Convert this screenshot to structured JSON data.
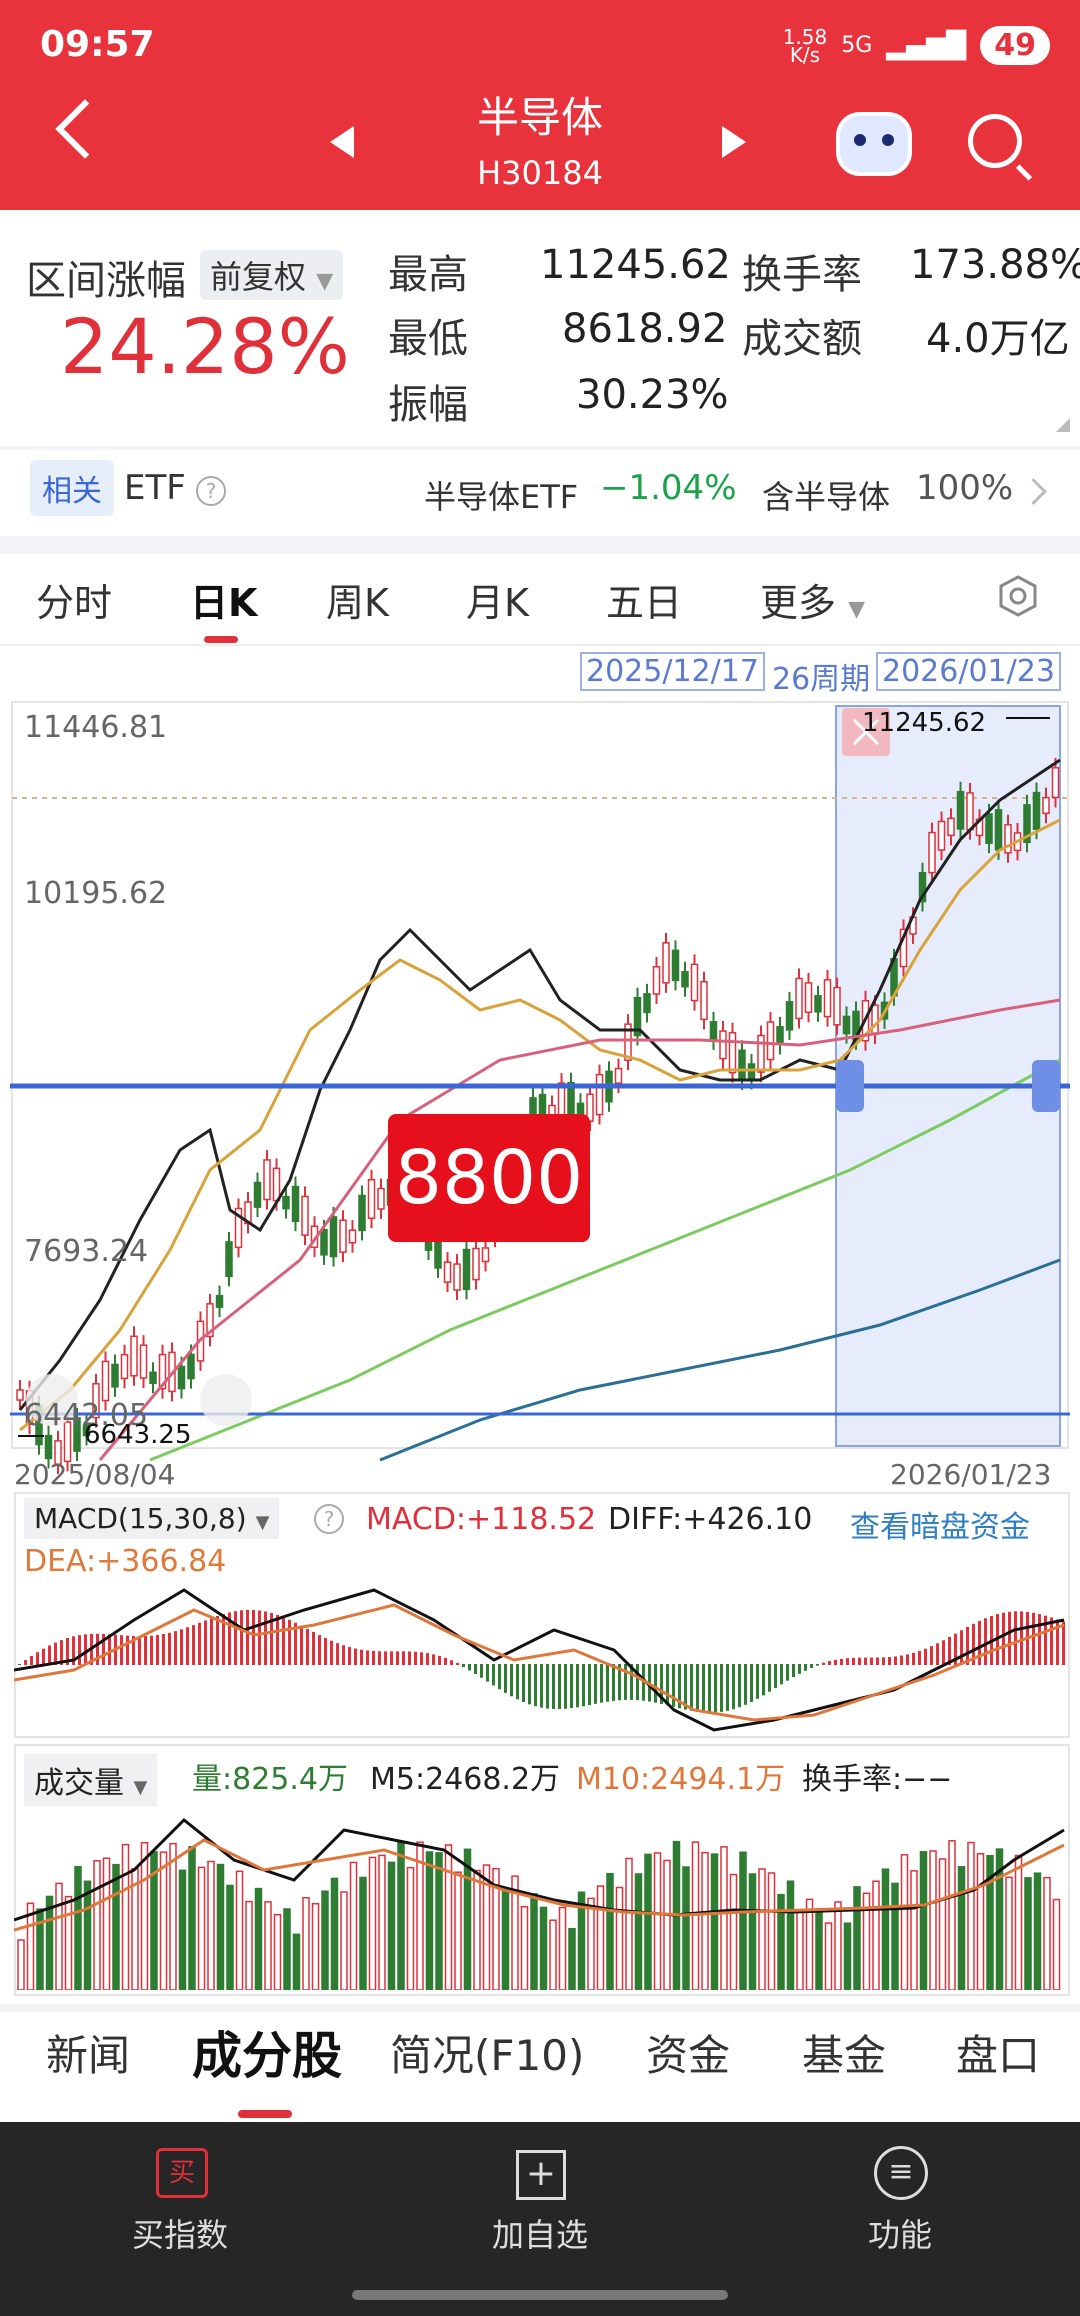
{
  "status": {
    "time": "09:57",
    "net_speed": "1.58\nK/s",
    "network": "5G",
    "battery": "49"
  },
  "header": {
    "title": "半导体",
    "code": "H30184"
  },
  "stats": {
    "range_label": "区间涨幅",
    "adjust": "前复权",
    "range_pct": "24.28%",
    "high_label": "最高",
    "high": "11245.62",
    "low_label": "最低",
    "low": "8618.92",
    "amp_label": "振幅",
    "amp": "30.23%",
    "turnover_label": "换手率",
    "turnover": "173.88%",
    "amount_label": "成交额",
    "amount": "4.0万亿"
  },
  "etf": {
    "badge": "相关",
    "label": "ETF",
    "name": "半导体ETF",
    "change": "−1.04%",
    "contain_label": "含半导体",
    "contain_pct": "100%"
  },
  "chart_tabs": [
    "分时",
    "日K",
    "周K",
    "月K",
    "五日",
    "更多"
  ],
  "range_bar": {
    "start": "2025/12/17",
    "periods": "26周期",
    "end": "2026/01/23"
  },
  "kline": {
    "price_labels": [
      "11446.81",
      "10195.62",
      "7693.24",
      "6442.05"
    ],
    "max_label": "11245.62",
    "min_label": "6643.25",
    "overlay": "8800",
    "date_start": "2025/08/04",
    "date_end": "2026/01/23"
  },
  "macd": {
    "selector": "MACD(15,30,8)",
    "macd": "MACD:+118.52",
    "diff": "DIFF:+426.10",
    "dea": "DEA:+366.84",
    "link": "查看暗盘资金"
  },
  "volume": {
    "selector": "成交量",
    "vol": "量:825.4万",
    "m5": "M5:2468.2万",
    "m10": "M10:2494.1万",
    "turnover": "换手率:−−"
  },
  "bottom_tabs": [
    "新闻",
    "成分股",
    "简况(F10)",
    "资金",
    "基金",
    "盘口"
  ],
  "nav": {
    "buy": "买指数",
    "buy_icon": "买",
    "add": "加自选",
    "func": "功能"
  },
  "colors": {
    "header": "#e8323c",
    "up": "#e0303a",
    "down": "#2e7d32",
    "accent": "#3a66d6"
  }
}
